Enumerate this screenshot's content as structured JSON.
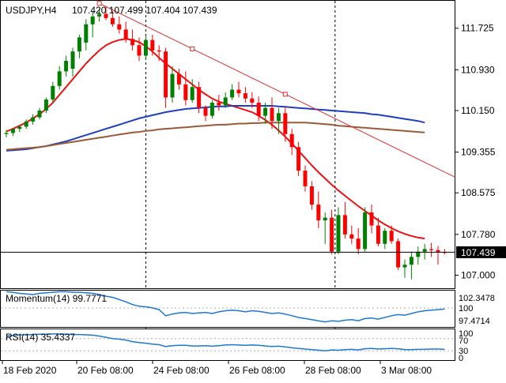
{
  "header": {
    "symbol_timeframe": "USDJPY,H4",
    "ohlc": "107.420 107.499 107.404 107.439"
  },
  "main_price_labels": [
    "111.725",
    "110.930",
    "110.150",
    "109.355",
    "108.575",
    "107.780",
    "107.000"
  ],
  "current_price": "107.439",
  "momentum": {
    "label": "Momentum(14) 99.7771",
    "axis_labels": [
      "102.3478",
      "100",
      "97.4714"
    ]
  },
  "rsi": {
    "label": "RSI(14) 35.4337",
    "axis_labels": [
      "100",
      "70",
      "30",
      "0"
    ]
  },
  "time_labels": [
    "18 Feb 2020",
    "20 Feb 08:00",
    "24 Feb 08:00",
    "26 Feb 08:00",
    "28 Feb 08:00",
    "3 Mar 08:00"
  ],
  "colors": {
    "bull": "#008000",
    "bear": "#ff0000",
    "sma_fast": "#ee1111",
    "sma_mid": "#1f3fbf",
    "sma_slow": "#9a5a38",
    "indicator": "#1e78d2",
    "trendline": "#e03030"
  },
  "chart_data": [
    {
      "type": "candlestick",
      "title": "USDJPY,H4",
      "ylim": [
        106.75,
        112.25
      ],
      "y_ticks": [
        111.725,
        110.93,
        110.15,
        109.355,
        108.575,
        107.78,
        107.0
      ],
      "current_price": 107.439,
      "candles": [
        [
          109.7,
          109.78,
          109.64,
          109.72
        ],
        [
          109.72,
          109.82,
          109.66,
          109.8
        ],
        [
          109.8,
          109.88,
          109.74,
          109.84
        ],
        [
          109.84,
          109.98,
          109.8,
          109.94
        ],
        [
          109.94,
          110.08,
          109.88,
          110.02
        ],
        [
          110.02,
          110.2,
          109.98,
          110.15
        ],
        [
          110.15,
          110.4,
          110.1,
          110.36
        ],
        [
          110.36,
          110.7,
          110.3,
          110.62
        ],
        [
          110.62,
          111.0,
          110.55,
          110.9
        ],
        [
          110.9,
          111.2,
          110.8,
          111.1
        ],
        [
          110.95,
          111.35,
          110.8,
          111.28
        ],
        [
          111.28,
          111.6,
          111.15,
          111.55
        ],
        [
          111.45,
          111.9,
          111.3,
          111.8
        ],
        [
          111.8,
          112.05,
          111.55,
          111.95
        ],
        [
          111.95,
          112.1,
          111.85,
          112.0
        ],
        [
          112.0,
          112.15,
          111.88,
          111.92
        ],
        [
          111.92,
          112.05,
          111.75,
          111.8
        ],
        [
          111.8,
          111.95,
          111.62,
          111.7
        ],
        [
          111.7,
          111.85,
          111.45,
          111.52
        ],
        [
          111.52,
          111.7,
          111.3,
          111.4
        ],
        [
          111.4,
          111.55,
          111.1,
          111.2
        ],
        [
          111.2,
          111.58,
          111.12,
          111.5
        ],
        [
          111.5,
          111.6,
          111.2,
          111.3
        ],
        [
          111.3,
          111.4,
          111.1,
          111.28
        ],
        [
          111.28,
          111.35,
          110.2,
          110.4
        ],
        [
          110.4,
          111.0,
          110.3,
          110.85
        ],
        [
          110.85,
          110.95,
          110.55,
          110.65
        ],
        [
          110.65,
          110.9,
          110.25,
          110.35
        ],
        [
          110.35,
          110.75,
          110.3,
          110.6
        ],
        [
          110.6,
          110.7,
          110.1,
          110.2
        ],
        [
          110.2,
          110.25,
          109.95,
          110.05
        ],
        [
          110.05,
          110.35,
          110.0,
          110.3
        ],
        [
          110.3,
          110.45,
          110.15,
          110.25
        ],
        [
          110.25,
          110.5,
          110.2,
          110.4
        ],
        [
          110.4,
          110.65,
          110.35,
          110.55
        ],
        [
          110.55,
          110.7,
          110.4,
          110.48
        ],
        [
          110.48,
          110.6,
          110.3,
          110.38
        ],
        [
          110.38,
          110.5,
          110.2,
          110.3
        ],
        [
          110.3,
          110.42,
          109.95,
          110.05
        ],
        [
          110.05,
          110.3,
          109.9,
          110.2
        ],
        [
          110.2,
          110.4,
          109.8,
          109.95
        ],
        [
          109.95,
          110.2,
          109.7,
          110.1
        ],
        [
          110.1,
          110.22,
          109.55,
          109.7
        ],
        [
          109.7,
          109.8,
          109.3,
          109.45
        ],
        [
          109.45,
          109.55,
          108.9,
          109.0
        ],
        [
          109.0,
          109.1,
          108.6,
          108.7
        ],
        [
          108.7,
          108.8,
          108.25,
          108.35
        ],
        [
          108.35,
          108.6,
          107.9,
          108.05
        ],
        [
          108.05,
          108.2,
          107.6,
          108.1
        ],
        [
          108.1,
          108.25,
          107.4,
          107.45
        ],
        [
          107.45,
          108.3,
          107.4,
          108.15
        ],
        [
          108.15,
          108.4,
          107.7,
          107.78
        ],
        [
          107.78,
          107.95,
          107.6,
          107.7
        ],
        [
          107.7,
          107.9,
          107.4,
          107.5
        ],
        [
          107.5,
          108.3,
          107.45,
          108.2
        ],
        [
          108.2,
          108.35,
          107.8,
          107.95
        ],
        [
          107.95,
          108.1,
          107.55,
          107.6
        ],
        [
          107.6,
          107.9,
          107.5,
          107.85
        ],
        [
          107.85,
          107.95,
          107.6,
          107.65
        ],
        [
          107.65,
          107.7,
          107.1,
          107.15
        ],
        [
          107.15,
          107.3,
          106.95,
          107.2
        ],
        [
          107.2,
          107.45,
          106.92,
          107.35
        ],
        [
          107.35,
          107.55,
          107.2,
          107.45
        ],
        [
          107.45,
          107.6,
          107.3,
          107.5
        ],
        [
          107.5,
          107.62,
          107.35,
          107.48
        ],
        [
          107.48,
          107.56,
          107.2,
          107.44
        ],
        [
          107.44,
          107.5,
          107.4,
          107.439
        ]
      ],
      "overlays": [
        {
          "kind": "sma",
          "color": "#ee1111",
          "values": [
            109.75,
            109.8,
            109.86,
            109.92,
            110.0,
            110.08,
            110.18,
            110.3,
            110.45,
            110.6,
            110.75,
            110.9,
            111.05,
            111.18,
            111.3,
            111.4,
            111.46,
            111.5,
            111.52,
            111.5,
            111.46,
            111.38,
            111.28,
            111.16,
            111.05,
            110.95,
            110.85,
            110.75,
            110.65,
            110.55,
            110.46,
            110.38,
            110.32,
            110.28,
            110.24,
            110.2,
            110.16,
            110.12,
            110.05,
            109.97,
            109.88,
            109.77,
            109.65,
            109.52,
            109.38,
            109.24,
            109.1,
            108.97,
            108.85,
            108.73,
            108.62,
            108.52,
            108.42,
            108.32,
            108.23,
            108.14,
            108.05,
            107.97,
            107.9,
            107.84,
            107.79,
            107.75,
            107.72,
            107.7
          ]
        },
        {
          "kind": "sma",
          "color": "#1f3fbf",
          "values": [
            109.38,
            109.39,
            109.4,
            109.41,
            109.43,
            109.45,
            109.47,
            109.5,
            109.53,
            109.56,
            109.6,
            109.64,
            109.68,
            109.72,
            109.76,
            109.8,
            109.84,
            109.88,
            109.92,
            109.96,
            110.0,
            110.03,
            110.06,
            110.09,
            110.12,
            110.14,
            110.16,
            110.18,
            110.19,
            110.2,
            110.21,
            110.22,
            110.23,
            110.23,
            110.24,
            110.24,
            110.24,
            110.24,
            110.24,
            110.24,
            110.24,
            110.23,
            110.22,
            110.21,
            110.2,
            110.19,
            110.18,
            110.17,
            110.16,
            110.15,
            110.14,
            110.13,
            110.12,
            110.11,
            110.1,
            110.08,
            110.07,
            110.05,
            110.03,
            110.01,
            109.99,
            109.97,
            109.95,
            109.92
          ]
        },
        {
          "kind": "sma",
          "color": "#9a5a38",
          "values": [
            109.4,
            109.41,
            109.42,
            109.43,
            109.44,
            109.45,
            109.47,
            109.49,
            109.51,
            109.53,
            109.55,
            109.57,
            109.59,
            109.61,
            109.63,
            109.65,
            109.67,
            109.69,
            109.71,
            109.73,
            109.74,
            109.76,
            109.77,
            109.79,
            109.8,
            109.81,
            109.82,
            109.83,
            109.84,
            109.85,
            109.86,
            109.87,
            109.88,
            109.88,
            109.89,
            109.9,
            109.9,
            109.91,
            109.91,
            109.92,
            109.92,
            109.92,
            109.92,
            109.92,
            109.92,
            109.92,
            109.91,
            109.9,
            109.89,
            109.88,
            109.86,
            109.85,
            109.84,
            109.83,
            109.82,
            109.81,
            109.8,
            109.79,
            109.78,
            109.77,
            109.76,
            109.75,
            109.74,
            109.73
          ]
        },
        {
          "kind": "trendline",
          "color": "#e03030",
          "x1": 14,
          "y1": 112.2,
          "x2": 72,
          "y2": 108.6
        }
      ]
    },
    {
      "type": "line",
      "title": "Momentum(14) 99.7771",
      "ylim": [
        96.6,
        103.1
      ],
      "reference_lines": [
        100
      ],
      "values": [
        102.9,
        102.8,
        102.6,
        102.5,
        102.4,
        102.6,
        102.7,
        102.8,
        102.9,
        102.9,
        102.8,
        102.8,
        102.7,
        102.6,
        102.4,
        102.1,
        101.9,
        101.5,
        101.1,
        100.6,
        100.3,
        100.2,
        100.0,
        99.7,
        98.6,
        98.9,
        99.1,
        99.2,
        99.0,
        99.1,
        99.2,
        99.0,
        99.3,
        99.5,
        99.6,
        99.5,
        99.3,
        99.5,
        99.4,
        99.2,
        99.0,
        99.1,
        98.9,
        98.6,
        98.3,
        98.1,
        97.9,
        97.7,
        97.5,
        97.7,
        97.6,
        97.8,
        97.9,
        97.7,
        98.1,
        98.2,
        98.0,
        98.3,
        98.6,
        98.8,
        98.7,
        99.0,
        99.3,
        99.5,
        99.6,
        99.7,
        99.8
      ]
    },
    {
      "type": "line",
      "title": "RSI(14) 35.4337",
      "ylim": [
        0,
        100
      ],
      "reference_lines": [
        70,
        30
      ],
      "values": [
        78,
        80,
        82,
        82,
        83,
        84,
        84,
        85,
        85,
        84,
        83,
        83,
        82,
        81,
        78,
        74,
        70,
        68,
        65,
        60,
        57,
        55,
        52,
        50,
        44,
        47,
        48,
        48,
        46,
        46,
        47,
        45,
        47,
        49,
        50,
        49,
        48,
        49,
        48,
        46,
        44,
        45,
        43,
        40,
        38,
        36,
        34,
        32,
        30,
        33,
        32,
        34,
        35,
        33,
        37,
        38,
        36,
        37,
        38,
        37,
        34,
        34,
        35,
        35,
        36,
        36,
        35
      ]
    }
  ]
}
